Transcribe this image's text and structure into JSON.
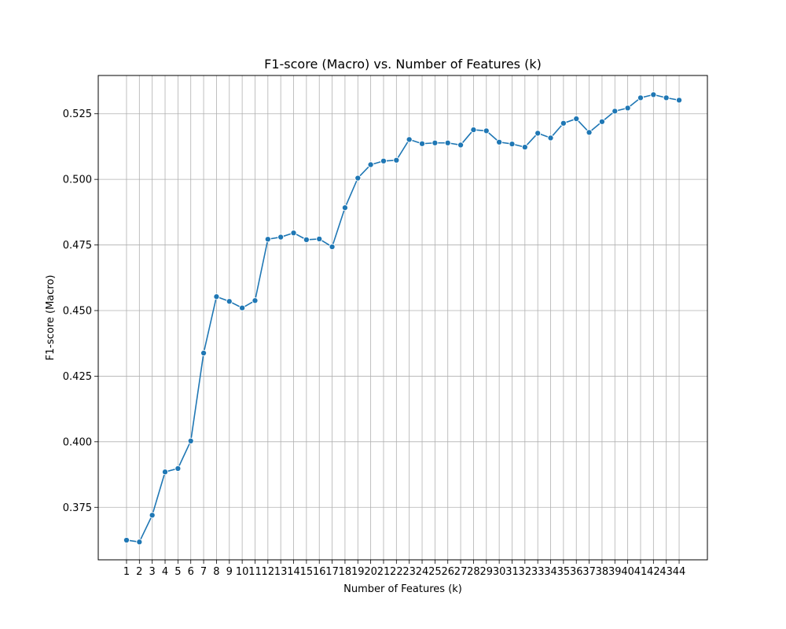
{
  "chart_data": {
    "type": "line",
    "title": "F1-score (Macro) vs. Number of Features (k)",
    "xlabel": "Number of Features (k)",
    "ylabel": "F1-score (Macro)",
    "x": [
      1,
      2,
      3,
      4,
      5,
      6,
      7,
      8,
      9,
      10,
      11,
      12,
      13,
      14,
      15,
      16,
      17,
      18,
      19,
      20,
      21,
      22,
      23,
      24,
      25,
      26,
      27,
      28,
      29,
      30,
      31,
      32,
      33,
      34,
      35,
      36,
      37,
      38,
      39,
      40,
      41,
      42,
      43,
      44
    ],
    "series": [
      {
        "values": [
          0.3625,
          0.3618,
          0.372,
          0.3885,
          0.3898,
          0.4003,
          0.4338,
          0.4553,
          0.4535,
          0.451,
          0.4538,
          0.4772,
          0.478,
          0.4796,
          0.477,
          0.4773,
          0.4743,
          0.4892,
          0.5005,
          0.5056,
          0.507,
          0.5073,
          0.5152,
          0.5136,
          0.5139,
          0.5139,
          0.5131,
          0.5189,
          0.5185,
          0.5142,
          0.5135,
          0.5123,
          0.5176,
          0.5158,
          0.5214,
          0.5231,
          0.5179,
          0.522,
          0.526,
          0.5272,
          0.5311,
          0.5323,
          0.5311,
          0.5302
        ],
        "color": "#1f77b4"
      }
    ],
    "xlim": [
      -1.2,
      46.2
    ],
    "ylim": [
      0.355,
      0.5396
    ],
    "yticks": [
      0.375,
      0.4,
      0.425,
      0.45,
      0.475,
      0.5,
      0.525
    ],
    "ytick_labels": [
      "0.375",
      "0.400",
      "0.425",
      "0.450",
      "0.475",
      "0.500",
      "0.525"
    ],
    "grid": true,
    "legend": "none",
    "marker": "circle"
  }
}
